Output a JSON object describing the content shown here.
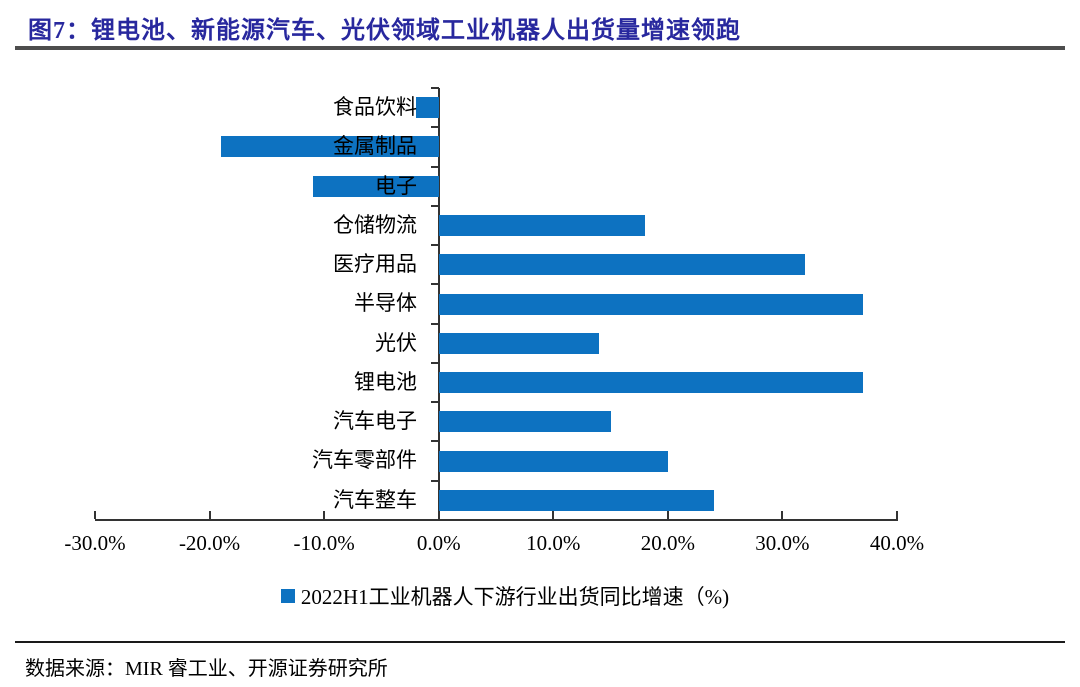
{
  "figure": {
    "title": "图7：锂电池、新能源汽车、光伏领域工业机器人出货量增速领跑"
  },
  "chart_data": {
    "type": "bar",
    "orientation": "horizontal",
    "title": "图7：锂电池、新能源汽车、光伏领域工业机器人出货量增速领跑",
    "categories": [
      "食品饮料",
      "金属制品",
      "电子",
      "仓储物流",
      "医疗用品",
      "半导体",
      "光伏",
      "锂电池",
      "汽车电子",
      "汽车零部件",
      "汽车整车"
    ],
    "values": [
      -2,
      -19,
      -11,
      18,
      32,
      37,
      14,
      37,
      15,
      20,
      24
    ],
    "unit": "%",
    "series_name": "2022H1工业机器人下游行业出货同比增速（%)",
    "xlim": [
      -30,
      40
    ],
    "x_tick_values": [
      -30,
      -20,
      -10,
      0,
      10,
      20,
      30,
      40
    ],
    "x_tick_labels": [
      "-30.0%",
      "-20.0%",
      "-10.0%",
      "0.0%",
      "10.0%",
      "20.0%",
      "30.0%",
      "40.0%"
    ],
    "grid": false,
    "legend_position": "bottom",
    "bar_color": "#0d72c1"
  },
  "legend": {
    "label": "2022H1工业机器人下游行业出货同比增速（%)"
  },
  "colors": {
    "bar_blue": "#0d72c1",
    "title_navy": "#28289e",
    "title_rule_gray": "#4d4d4d",
    "axis_black": "#333333"
  },
  "footer": {
    "source": "数据来源：MIR 睿工业、开源证券研究所"
  }
}
